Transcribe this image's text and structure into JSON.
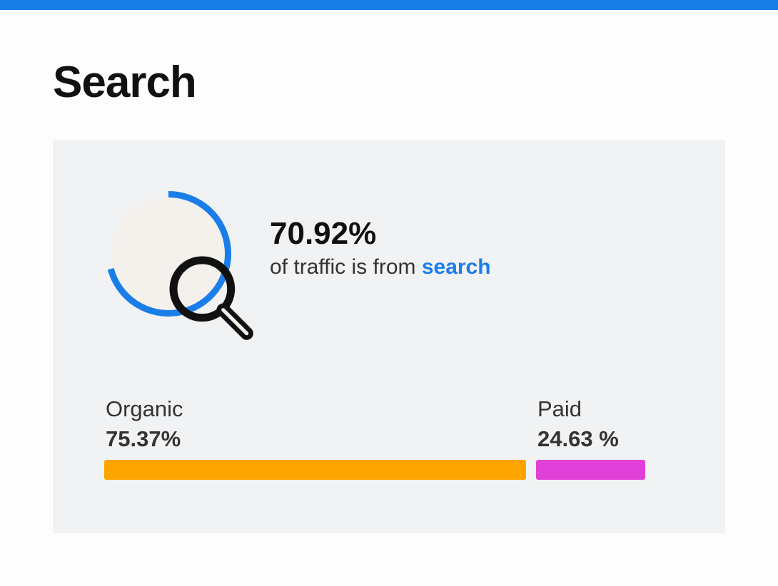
{
  "header": {
    "title": "Search"
  },
  "traffic": {
    "share_percent": 70.92,
    "value_label": "70.92%",
    "caption_prefix": "of traffic is from ",
    "caption_accent": "search"
  },
  "split": {
    "organic": {
      "label": "Organic",
      "value_label": "75.37%",
      "percent": 75.37,
      "color": "#ffa500"
    },
    "paid": {
      "label": "Paid",
      "value_label": "24.63 %",
      "percent": 24.63,
      "color": "#e040d8"
    }
  },
  "theme": {
    "accent": "#1a7ee8",
    "ring_background": "#f4f1ec"
  },
  "icons": {
    "center_icon": "search-icon"
  }
}
